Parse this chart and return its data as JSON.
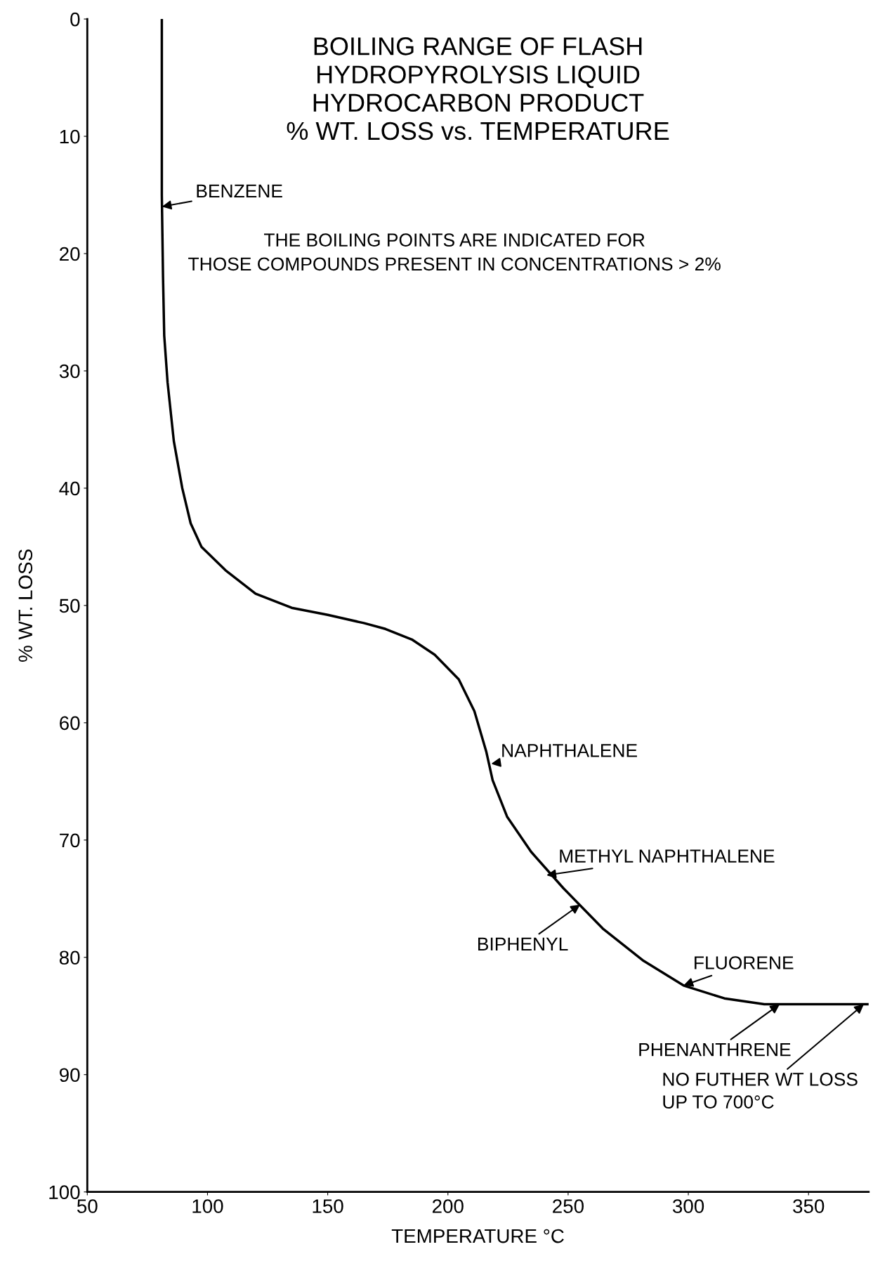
{
  "chart_data": {
    "type": "line",
    "title": "BOILING RANGE OF FLASH\nHYDROPYROLYSIS LIQUID\nHYDROCARBON PRODUCT\n% WT. LOSS vs. TEMPERATURE",
    "xlabel": "TEMPERATURE °C",
    "ylabel": "% WT. LOSS",
    "x": [
      81,
      81,
      81.5,
      82,
      83.4,
      86,
      89.5,
      93,
      97.5,
      107.5,
      120,
      135,
      150,
      165,
      174,
      185,
      194.5,
      204.5,
      211,
      216,
      218.6,
      224.6,
      234.6,
      248,
      264.7,
      281.4,
      298,
      315,
      331.6,
      350,
      375
    ],
    "series": [
      {
        "color": "#000000",
        "values": [
          0,
          15,
          22,
          27,
          31,
          36,
          40,
          43,
          45,
          47,
          49,
          50.2,
          50.8,
          51.5,
          52.0,
          52.9,
          54.2,
          56.3,
          59,
          62.5,
          64.9,
          68,
          71,
          74.1,
          77.6,
          80.3,
          82.4,
          83.5,
          84,
          84,
          84
        ]
      }
    ],
    "xlim": [
      50,
      375
    ],
    "xticks": [
      50,
      100,
      150,
      200,
      250,
      300,
      350
    ],
    "ylim": [
      100,
      0
    ],
    "yticks": [
      0,
      10,
      20,
      30,
      40,
      50,
      60,
      70,
      80,
      90,
      100
    ],
    "grid": false,
    "marker": "none",
    "line_style": "solid",
    "annotations": [
      "THE BOILING POINTS ARE INDICATED FOR\nTHOSE COMPOUNDS PRESENT IN CONCENTRATIONS > 2%",
      {
        "text": "BENZENE",
        "x": 81,
        "y": 16
      },
      {
        "text": "NAPHTHALENE",
        "x": 218,
        "y": 63.5
      },
      {
        "text": "METHYL NAPHTHALENE",
        "x": 241,
        "y": 73
      },
      {
        "text": "BIPHENYL",
        "x": 255,
        "y": 75.5
      },
      {
        "text": "FLUORENE",
        "x": 298,
        "y": 82.4
      },
      {
        "text": "PHENANTHRENE",
        "x": 338,
        "y": 84
      },
      {
        "text": "NO FUTHER WT LOSS\nUP TO 700°C",
        "x": 373,
        "y": 84
      }
    ]
  }
}
